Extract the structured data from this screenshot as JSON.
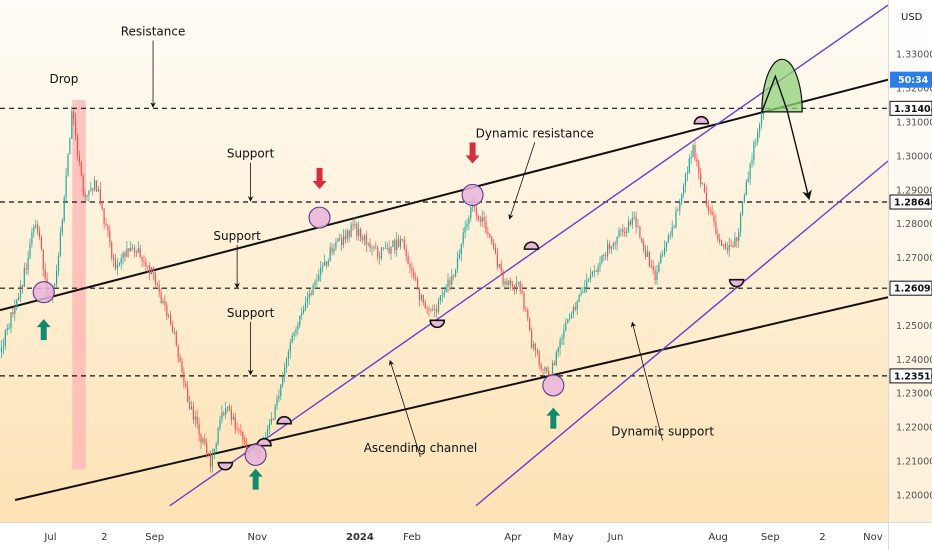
{
  "chart_data": {
    "type": "candlestick",
    "currency": "USD",
    "ylim": [
      1.192,
      1.346
    ],
    "x_range": [
      "2023-06-01",
      "2024-11-10"
    ],
    "x_ticks": [
      {
        "label": "Jul",
        "date": "2023-07-01"
      },
      {
        "label": "2",
        "date": "2023-08-02"
      },
      {
        "label": "Sep",
        "date": "2023-09-01"
      },
      {
        "label": "Nov",
        "date": "2023-11-01"
      },
      {
        "label": "2024",
        "date": "2024-01-01",
        "bold": true
      },
      {
        "label": "Feb",
        "date": "2024-02-01"
      },
      {
        "label": "Apr",
        "date": "2024-04-01"
      },
      {
        "label": "May",
        "date": "2024-05-01"
      },
      {
        "label": "Jun",
        "date": "2024-06-01"
      },
      {
        "label": "Aug",
        "date": "2024-08-01"
      },
      {
        "label": "Sep",
        "date": "2024-09-01"
      },
      {
        "label": "2",
        "date": "2024-10-02"
      },
      {
        "label": "Nov",
        "date": "2024-11-01"
      }
    ],
    "y_ticks": [
      "1.33000",
      "1.32000",
      "1.31000",
      "1.30000",
      "1.29000",
      "1.28000",
      "1.27000",
      "1.26000",
      "1.25000",
      "1.24000",
      "1.23000",
      "1.22000",
      "1.21000",
      "1.20000"
    ],
    "price_tags": [
      {
        "label": "1.31404",
        "value": 1.31404
      },
      {
        "label": "1.28640",
        "value": 1.2864
      },
      {
        "label": "1.26098",
        "value": 1.26098
      },
      {
        "label": "1.23510",
        "value": 1.2351
      }
    ],
    "countdown_tag": {
      "label": "50:34",
      "value": 1.3225
    },
    "horizontal_levels": [
      1.31404,
      1.2864,
      1.26098,
      1.2351
    ],
    "channel_lines": [
      {
        "role": "outer-upper",
        "color": "#111111",
        "from": [
          "2023-06-01",
          1.2545
        ],
        "to": [
          "2024-11-10",
          1.3225
        ]
      },
      {
        "role": "outer-lower",
        "color": "#111111",
        "from": [
          "2023-06-10",
          1.1985
        ],
        "to": [
          "2024-11-10",
          1.2583
        ]
      },
      {
        "role": "inner-upper",
        "color": "#6a3fd0",
        "from": [
          "2023-09-10",
          1.1968
        ],
        "to": [
          "2024-11-10",
          1.3445
        ]
      },
      {
        "role": "inner-lower",
        "color": "#6a3fd0",
        "from": [
          "2024-03-10",
          1.1968
        ],
        "to": [
          "2024-11-10",
          1.2985
        ]
      }
    ],
    "price_path": [
      [
        "2023-06-01",
        1.242
      ],
      [
        "2023-06-15",
        1.264
      ],
      [
        "2023-06-22",
        1.282
      ],
      [
        "2023-06-30",
        1.258
      ],
      [
        "2023-07-05",
        1.266
      ],
      [
        "2023-07-14",
        1.314
      ],
      [
        "2023-07-21",
        1.286
      ],
      [
        "2023-07-28",
        1.292
      ],
      [
        "2023-08-08",
        1.268
      ],
      [
        "2023-08-20",
        1.273
      ],
      [
        "2023-08-30",
        1.266
      ],
      [
        "2023-09-12",
        1.248
      ],
      [
        "2023-09-22",
        1.226
      ],
      [
        "2023-10-04",
        1.209
      ],
      [
        "2023-10-13",
        1.227
      ],
      [
        "2023-10-25",
        1.214
      ],
      [
        "2023-11-02",
        1.213
      ],
      [
        "2023-11-10",
        1.222
      ],
      [
        "2023-11-22",
        1.248
      ],
      [
        "2023-12-05",
        1.262
      ],
      [
        "2023-12-15",
        1.272
      ],
      [
        "2023-12-28",
        1.279
      ],
      [
        "2024-01-12",
        1.271
      ],
      [
        "2024-01-26",
        1.275
      ],
      [
        "2024-02-06",
        1.258
      ],
      [
        "2024-02-14",
        1.254
      ],
      [
        "2024-02-26",
        1.266
      ],
      [
        "2024-03-08",
        1.286
      ],
      [
        "2024-03-18",
        1.276
      ],
      [
        "2024-03-27",
        1.262
      ],
      [
        "2024-04-05",
        1.262
      ],
      [
        "2024-04-12",
        1.245
      ],
      [
        "2024-04-22",
        1.234
      ],
      [
        "2024-05-03",
        1.252
      ],
      [
        "2024-05-15",
        1.262
      ],
      [
        "2024-05-28",
        1.273
      ],
      [
        "2024-06-12",
        1.282
      ],
      [
        "2024-06-24",
        1.264
      ],
      [
        "2024-07-05",
        1.279
      ],
      [
        "2024-07-17",
        1.303
      ],
      [
        "2024-07-26",
        1.284
      ],
      [
        "2024-08-05",
        1.272
      ],
      [
        "2024-08-12",
        1.276
      ],
      [
        "2024-08-20",
        1.298
      ],
      [
        "2024-08-29",
        1.317
      ]
    ],
    "projection_path": [
      [
        "2024-08-27",
        1.313
      ],
      [
        "2024-09-04",
        1.3235
      ],
      [
        "2024-09-11",
        1.3135
      ],
      [
        "2024-09-24",
        1.2875
      ]
    ],
    "projection_dome": {
      "from": [
        "2024-08-27",
        1.313
      ],
      "to": [
        "2024-09-20",
        1.313
      ],
      "top": 1.3285,
      "color": "#8fd17a"
    },
    "drop_band": {
      "from": "2023-07-14",
      "to": "2023-07-22",
      "top": 1.3165,
      "bottom": 1.2075,
      "color": "#ffb3b3"
    },
    "touch_circles": [
      {
        "date": "2023-06-27",
        "value": 1.2598
      },
      {
        "date": "2023-12-08",
        "value": 1.2818
      },
      {
        "date": "2024-03-08",
        "value": 1.2885
      },
      {
        "date": "2024-04-25",
        "value": 1.2323
      },
      {
        "date": "2023-10-31",
        "value": 1.2118
      }
    ],
    "arrows": [
      {
        "direction": "up",
        "color": "#138a6e",
        "date": "2023-06-27",
        "value": 1.2486
      },
      {
        "direction": "down",
        "color": "#d32f3c",
        "date": "2023-12-08",
        "value": 1.2935
      },
      {
        "direction": "down",
        "color": "#d32f3c",
        "date": "2024-03-08",
        "value": 1.301
      },
      {
        "direction": "up",
        "color": "#138a6e",
        "date": "2024-04-25",
        "value": 1.2225
      },
      {
        "direction": "up",
        "color": "#138a6e",
        "date": "2023-10-31",
        "value": 1.2045
      }
    ],
    "reaction_marks": [
      {
        "date": "2023-10-13",
        "value": 1.2095,
        "side": "below"
      },
      {
        "date": "2023-11-17",
        "value": 1.221,
        "side": "above"
      },
      {
        "date": "2023-11-05",
        "value": 1.2145,
        "side": "above"
      },
      {
        "date": "2024-02-16",
        "value": 1.2515,
        "side": "below"
      },
      {
        "date": "2024-04-12",
        "value": 1.2725,
        "side": "above"
      },
      {
        "date": "2024-07-22",
        "value": 1.3095,
        "side": "above"
      },
      {
        "date": "2024-08-12",
        "value": 1.2635,
        "side": "below"
      }
    ],
    "annotations": [
      {
        "text": "Resistance",
        "label_at": [
          "2023-08-31",
          1.3355
        ],
        "pointer_to": [
          "2023-08-31",
          1.3145
        ]
      },
      {
        "text": "Drop",
        "label_at": [
          "2023-07-09",
          1.3215
        ],
        "pointer_to": null
      },
      {
        "text": "Support",
        "label_at": [
          "2023-10-28",
          1.2995
        ],
        "pointer_to": [
          "2023-10-28",
          1.2868
        ]
      },
      {
        "text": "Support",
        "label_at": [
          "2023-10-20",
          1.2752
        ],
        "pointer_to": [
          "2023-10-20",
          1.2612
        ]
      },
      {
        "text": "Support",
        "label_at": [
          "2023-10-28",
          1.2525
        ],
        "pointer_to": [
          "2023-10-28",
          1.2356
        ]
      },
      {
        "text": "Dynamic resistance",
        "label_at": [
          "2024-04-14",
          1.3055
        ],
        "pointer_to": [
          "2024-03-30",
          1.2815
        ]
      },
      {
        "text": "Ascending channel",
        "label_at": [
          "2024-02-06",
          1.2127
        ],
        "pointer_to": [
          "2024-01-19",
          1.2395
        ]
      },
      {
        "text": "Dynamic support",
        "label_at": [
          "2024-06-29",
          1.2175
        ],
        "pointer_to": [
          "2024-06-11",
          1.2508
        ]
      }
    ]
  }
}
